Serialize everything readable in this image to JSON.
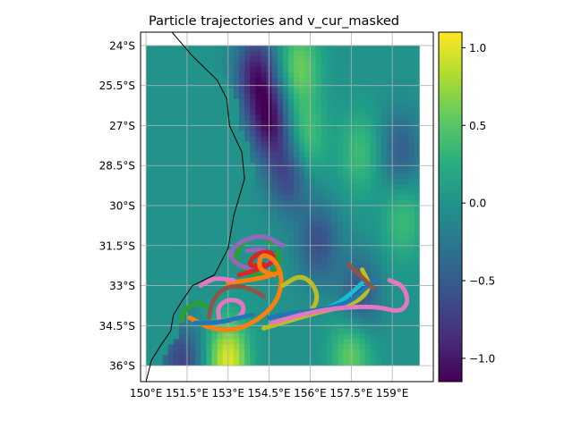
{
  "chart_data": {
    "type": "heatmap",
    "title": "Particle trajectories and v_cur_masked",
    "xlabel": "",
    "ylabel": "",
    "xlim": [
      149.8,
      160.5
    ],
    "ylim": [
      -36.6,
      -23.5
    ],
    "data_extent": {
      "lon": [
        150.0,
        160.0
      ],
      "lat": [
        -36.0,
        -24.0
      ]
    },
    "x_ticks": [
      150,
      151.5,
      153,
      154.5,
      156,
      157.5,
      159
    ],
    "x_tick_labels": [
      "150°E",
      "151.5°E",
      "153°E",
      "154.5°E",
      "156°E",
      "157.5°E",
      "159°E"
    ],
    "y_ticks": [
      -24,
      -25.5,
      -27,
      -28.5,
      -30,
      -31.5,
      -33,
      -34.5,
      -36
    ],
    "y_tick_labels": [
      "24°S",
      "25.5°S",
      "27°S",
      "28.5°S",
      "30°S",
      "31.5°S",
      "33°S",
      "34.5°S",
      "36°S"
    ],
    "grid": true,
    "colorbar": {
      "range": [
        -1.15,
        1.1
      ],
      "ticks": [
        1.0,
        0.5,
        0.0,
        -0.5,
        -1.0
      ],
      "tick_labels": [
        "1.0",
        "0.5",
        "0.0",
        "−0.5",
        "−1.0"
      ],
      "colormap": "viridis"
    },
    "field_features": [
      {
        "kind": "negative",
        "lon": 154.0,
        "lat": -25.0,
        "strength": -0.9
      },
      {
        "kind": "negative",
        "lon": 154.5,
        "lat": -26.8,
        "strength": -1.0
      },
      {
        "kind": "negative",
        "lon": 155.2,
        "lat": -28.8,
        "strength": -0.7
      },
      {
        "kind": "negative",
        "lon": 156.3,
        "lat": -31.4,
        "strength": -0.6
      },
      {
        "kind": "negative",
        "lon": 159.3,
        "lat": -28.0,
        "strength": -0.5
      },
      {
        "kind": "negative",
        "lon": 157.8,
        "lat": -33.4,
        "strength": -0.6
      },
      {
        "kind": "positive",
        "lon": 155.6,
        "lat": -24.8,
        "strength": 0.6
      },
      {
        "kind": "positive",
        "lon": 155.8,
        "lat": -27.5,
        "strength": 0.5
      },
      {
        "kind": "positive",
        "lon": 157.8,
        "lat": -28.0,
        "strength": 0.4
      },
      {
        "kind": "positive",
        "lon": 159.4,
        "lat": -30.5,
        "strength": 0.4
      },
      {
        "kind": "positive",
        "lon": 153.0,
        "lat": -35.8,
        "strength": 1.0
      },
      {
        "kind": "positive",
        "lon": 157.5,
        "lat": -35.5,
        "strength": 0.6
      },
      {
        "kind": "negative",
        "lon": 151.3,
        "lat": -35.9,
        "strength": -0.7
      }
    ],
    "coastline": [
      [
        150.95,
        -23.5
      ],
      [
        151.7,
        -24.4
      ],
      [
        152.6,
        -25.3
      ],
      [
        152.95,
        -26.0
      ],
      [
        153.05,
        -27.0
      ],
      [
        153.5,
        -28.0
      ],
      [
        153.6,
        -29.0
      ],
      [
        153.2,
        -30.4
      ],
      [
        153.0,
        -31.6
      ],
      [
        152.5,
        -32.6
      ],
      [
        151.7,
        -33.0
      ],
      [
        151.3,
        -33.6
      ],
      [
        151.0,
        -34.1
      ],
      [
        150.9,
        -34.7
      ],
      [
        150.5,
        -35.3
      ],
      [
        150.2,
        -35.8
      ],
      [
        150.0,
        -36.6
      ]
    ],
    "series": [
      {
        "color": "#2ca02c",
        "points": [
          [
            154.6,
            -31.4
          ],
          [
            154.2,
            -31.1
          ],
          [
            153.6,
            -31.3
          ],
          [
            153.2,
            -31.9
          ],
          [
            153.6,
            -32.5
          ],
          [
            154.5,
            -32.7
          ],
          [
            154.9,
            -32.2
          ],
          [
            154.8,
            -31.7
          ]
        ]
      },
      {
        "color": "#9467bd",
        "points": [
          [
            155.0,
            -31.5
          ],
          [
            154.3,
            -31.1
          ],
          [
            153.5,
            -31.3
          ],
          [
            153.0,
            -31.8
          ],
          [
            153.4,
            -32.3
          ],
          [
            154.2,
            -32.4
          ],
          [
            154.7,
            -32.0
          ],
          [
            154.3,
            -31.6
          ],
          [
            153.7,
            -31.7
          ]
        ]
      },
      {
        "color": "#d62728",
        "points": [
          [
            153.4,
            -32.6
          ],
          [
            154.1,
            -32.4
          ],
          [
            154.7,
            -32.1
          ],
          [
            154.6,
            -31.7
          ],
          [
            154.0,
            -31.8
          ],
          [
            153.7,
            -32.3
          ],
          [
            154.3,
            -32.2
          ]
        ]
      },
      {
        "color": "#ff7f0e",
        "points": [
          [
            151.6,
            -34.2
          ],
          [
            152.3,
            -34.6
          ],
          [
            153.2,
            -34.7
          ],
          [
            154.1,
            -34.3
          ],
          [
            154.8,
            -33.6
          ],
          [
            155.0,
            -32.7
          ],
          [
            154.7,
            -32.0
          ],
          [
            154.2,
            -31.8
          ],
          [
            154.1,
            -32.4
          ],
          [
            154.7,
            -32.6
          ]
        ]
      },
      {
        "color": "#ff7f0e",
        "points": [
          [
            153.0,
            -32.9
          ],
          [
            153.7,
            -32.8
          ],
          [
            154.3,
            -32.7
          ],
          [
            154.9,
            -32.5
          ]
        ]
      },
      {
        "color": "#8c564b",
        "points": [
          [
            152.3,
            -34.2
          ],
          [
            152.4,
            -33.6
          ],
          [
            152.8,
            -33.1
          ],
          [
            153.4,
            -33.0
          ],
          [
            154.0,
            -33.2
          ],
          [
            154.3,
            -33.4
          ]
        ]
      },
      {
        "color": "#e377c2",
        "points": [
          [
            152.7,
            -34.4
          ],
          [
            152.6,
            -33.8
          ],
          [
            153.0,
            -33.5
          ],
          [
            153.5,
            -33.6
          ],
          [
            153.6,
            -34.0
          ],
          [
            153.2,
            -34.3
          ]
        ]
      },
      {
        "color": "#e377c2",
        "points": [
          [
            152.0,
            -33.0
          ],
          [
            152.5,
            -32.7
          ],
          [
            153.2,
            -32.8
          ]
        ]
      },
      {
        "color": "#17becf",
        "points": [
          [
            155.3,
            -34.3
          ],
          [
            156.2,
            -34.0
          ],
          [
            157.0,
            -33.7
          ],
          [
            157.6,
            -33.2
          ],
          [
            157.9,
            -32.9
          ]
        ]
      },
      {
        "color": "#bcbd22",
        "points": [
          [
            154.3,
            -34.6
          ],
          [
            155.3,
            -34.3
          ],
          [
            156.3,
            -34.0
          ],
          [
            157.2,
            -33.8
          ],
          [
            157.9,
            -33.5
          ],
          [
            158.2,
            -33.0
          ],
          [
            157.9,
            -32.4
          ]
        ]
      },
      {
        "color": "#bcbd22",
        "points": [
          [
            155.0,
            -33.0
          ],
          [
            155.6,
            -32.6
          ],
          [
            156.1,
            -32.9
          ],
          [
            156.3,
            -33.5
          ],
          [
            156.0,
            -34.0
          ]
        ]
      },
      {
        "color": "#1f77b4",
        "points": [
          [
            154.5,
            -34.2
          ],
          [
            155.5,
            -34.0
          ],
          [
            156.5,
            -33.9
          ],
          [
            157.5,
            -33.6
          ],
          [
            158.0,
            -33.1
          ],
          [
            158.4,
            -32.8
          ]
        ]
      },
      {
        "color": "#1f77b4",
        "points": [
          [
            151.8,
            -34.4
          ],
          [
            152.6,
            -34.4
          ],
          [
            153.4,
            -34.2
          ],
          [
            153.9,
            -34.1
          ]
        ]
      },
      {
        "color": "#8c564b",
        "points": [
          [
            157.4,
            -32.2
          ],
          [
            157.9,
            -32.7
          ],
          [
            158.3,
            -33.1
          ]
        ]
      },
      {
        "color": "#e377c2",
        "points": [
          [
            154.6,
            -34.4
          ],
          [
            155.6,
            -34.1
          ],
          [
            156.6,
            -33.9
          ],
          [
            157.5,
            -33.8
          ],
          [
            158.5,
            -33.8
          ],
          [
            159.3,
            -34.0
          ],
          [
            159.6,
            -33.6
          ],
          [
            159.4,
            -33.0
          ],
          [
            158.9,
            -32.8
          ]
        ]
      },
      {
        "color": "#2ca02c",
        "points": [
          [
            151.3,
            -34.3
          ],
          [
            151.4,
            -33.9
          ],
          [
            151.9,
            -33.6
          ],
          [
            152.2,
            -33.8
          ]
        ]
      }
    ]
  }
}
